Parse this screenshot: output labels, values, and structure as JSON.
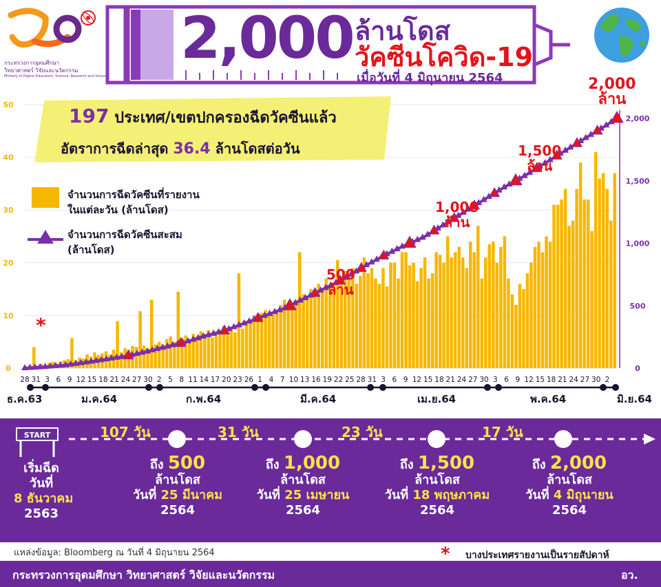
{
  "header": {
    "logo_org_line1": "กระทรวงการอุดมศึกษา",
    "logo_org_line2": "วิทยาศาสตร์ วิจัยและนวัตกรรม",
    "logo_org_en": "Ministry of Higher Education, Science, Research and Innovation",
    "big_number": "2,000",
    "title_line1": "ล้านโดส",
    "title_line2": "วัคซีนโควิด-19",
    "date_line": "เมื่อวันที่ 4 มิถุนายน 2564"
  },
  "highlight": {
    "countries_number": "197",
    "countries_text": "ประเทศ/เขตปกครองฉีดวัคซีนแล้ว",
    "rate_prefix": "อัตราการฉีดล่าสุด",
    "rate_number": "36.4",
    "rate_suffix": "ล้านโดสต่อวัน"
  },
  "legend": {
    "bar_line1": "จำนวนการฉีดวัคซีนที่รายงาน",
    "bar_line2": "ในแต่ละวัน (ล้านโดส)",
    "line_line1": "จำนวนการฉีดวัคซีนสะสม",
    "line_line2": "(ล้านโดส)"
  },
  "milestone_labels": [
    {
      "num": "500",
      "unit": "ล้าน"
    },
    {
      "num": "1,000",
      "unit": "ล้าน"
    },
    {
      "num": "1,500",
      "unit": "ล้าน"
    },
    {
      "num": "2,000",
      "unit": "ล้าน"
    }
  ],
  "weekly_note_symbol": "*",
  "months": [
    "ธ.ค.63",
    "ม.ค.64",
    "ก.พ.64",
    "มี.ค.64",
    "เม.ย.64",
    "พ.ค.64",
    "มิ.ย.64"
  ],
  "timeline": {
    "start_sign": "START",
    "start_title": "เริ่มฉีด",
    "start_sub": "วันที่",
    "start_date": "8 ธันวาคม",
    "start_year": "2563",
    "intervals": [
      "107 วัน",
      "31 วัน",
      "23 วัน",
      "17 วัน"
    ],
    "milestones": [
      {
        "prefix": "ถึง",
        "num": "500",
        "unit": "ล้านโดส",
        "day_prefix": "วันที่",
        "date": "25 มีนาคม",
        "year": "2564"
      },
      {
        "prefix": "ถึง",
        "num": "1,000",
        "unit": "ล้านโดส",
        "day_prefix": "วันที่",
        "date": "25 เมษายน",
        "year": "2564"
      },
      {
        "prefix": "ถึง",
        "num": "1,500",
        "unit": "ล้านโดส",
        "day_prefix": "วันที่",
        "date": "18 พฤษภาคม",
        "year": "2564"
      },
      {
        "prefix": "ถึง",
        "num": "2,000",
        "unit": "ล้านโดส",
        "day_prefix": "วันที่",
        "date": "4 มิถุนายน",
        "year": "2564"
      }
    ]
  },
  "source": "แหล่งข้อมูล: Bloomberg ณ วันที่ 4 มิถุนายน 2564",
  "note": "บางประเทศรายงานเป็นรายสัปดาห์",
  "footer": {
    "ministry": "กระทรวงการอุดมศึกษา วิทยาศาสตร์ วิจัยและนวัตกรรม",
    "abbr": "อว."
  },
  "colors": {
    "purple": "#6a2a9a",
    "red": "#e3141b",
    "bar_yellow": "#f5b700",
    "highlight_yellow": "#f3ef6e"
  },
  "chart_data": {
    "type": "bar",
    "x_tick_labels": [
      "28",
      "31",
      "3",
      "6",
      "9",
      "12",
      "15",
      "18",
      "21",
      "24",
      "27",
      "30",
      "2",
      "5",
      "8",
      "11",
      "14",
      "17",
      "20",
      "23",
      "26",
      "1",
      "4",
      "7",
      "10",
      "13",
      "16",
      "19",
      "22",
      "25",
      "28",
      "31",
      "3",
      "6",
      "9",
      "12",
      "15",
      "18",
      "21",
      "24",
      "27",
      "30",
      "3",
      "6",
      "9",
      "12",
      "15",
      "18",
      "21",
      "24",
      "27",
      "30",
      "2"
    ],
    "y_left_ticks": [
      0,
      10,
      20,
      30,
      40,
      50
    ],
    "y_right_ticks": [
      0,
      500,
      1000,
      1500,
      2000
    ],
    "y_left_lim": [
      0,
      50
    ],
    "y_right_lim": [
      0,
      2000
    ],
    "series": [
      {
        "name": "จำนวนการฉีดวัคซีนที่รายงานในแต่ละวัน (ล้านโดส)",
        "axis": "left",
        "values": [
          0.3,
          0.5,
          4,
          0.5,
          0.8,
          0.6,
          1,
          1.2,
          1,
          1.3,
          1.5,
          1.7,
          5.7,
          1.5,
          2,
          1.8,
          2.6,
          2.2,
          3,
          2.5,
          2.8,
          3.2,
          2.6,
          3.5,
          8.9,
          3,
          3.8,
          3.5,
          4.2,
          4,
          10.8,
          4.3,
          3.8,
          13,
          4.5,
          5,
          4.5,
          5.5,
          6,
          5,
          14.5,
          5.8,
          6.2,
          5.5,
          6.5,
          6,
          7,
          6.5,
          7.2,
          5.8,
          6.8,
          7.2,
          8,
          7,
          7.5,
          6.8,
          18,
          7.5,
          9,
          8.5,
          10,
          9.5,
          10.5,
          11,
          10,
          10.2,
          11,
          12,
          13,
          11.5,
          12.5,
          13,
          22,
          14,
          13.5,
          15,
          14.5,
          16,
          15,
          17,
          15.5,
          16,
          20.5,
          17,
          18.5,
          17,
          19,
          16,
          17.5,
          21,
          18,
          19,
          17,
          16,
          19,
          15.5,
          20,
          20,
          17,
          22,
          22,
          19.5,
          20,
          16.5,
          19,
          21,
          17,
          18,
          22,
          21.5,
          20,
          25,
          21,
          22,
          23,
          21,
          19,
          24,
          22,
          27,
          17,
          21,
          23.5,
          24,
          20,
          23,
          25,
          17,
          14,
          12,
          16,
          15,
          18,
          20,
          23,
          24,
          22,
          25,
          24,
          31,
          31,
          32,
          34,
          27,
          28,
          34,
          39,
          32,
          32,
          26,
          41,
          36,
          37,
          34,
          28,
          37
        ],
        "color": "#f5b700"
      },
      {
        "name": "จำนวนการฉีดวัคซีนสะสม (ล้านโดส)",
        "axis": "right",
        "points": [
          [
            0,
            0
          ],
          [
            12,
            10
          ],
          [
            25,
            25
          ],
          [
            36,
            45
          ],
          [
            48,
            70
          ],
          [
            60,
            95
          ],
          [
            72,
            130
          ],
          [
            84,
            170
          ],
          [
            96,
            210
          ],
          [
            108,
            260
          ],
          [
            119,
            300
          ],
          [
            131,
            360
          ],
          [
            143,
            420
          ],
          [
            155,
            480
          ],
          [
            167,
            560
          ],
          [
            179,
            640
          ],
          [
            191,
            720
          ],
          [
            203,
            820
          ],
          [
            214,
            900
          ],
          [
            226,
            980
          ],
          [
            238,
            1050
          ],
          [
            250,
            1150
          ],
          [
            262,
            1250
          ],
          [
            274,
            1350
          ],
          [
            286,
            1450
          ],
          [
            298,
            1540
          ],
          [
            310,
            1640
          ],
          [
            322,
            1740
          ],
          [
            334,
            1840
          ],
          [
            345,
            1930
          ],
          [
            353,
            2000
          ]
        ]
      }
    ],
    "milestone_markers": [
      {
        "label": "500",
        "value": 500
      },
      {
        "label": "1,000",
        "value": 1000
      },
      {
        "label": "1,500",
        "value": 1500
      },
      {
        "label": "2,000",
        "value": 2000
      }
    ]
  }
}
